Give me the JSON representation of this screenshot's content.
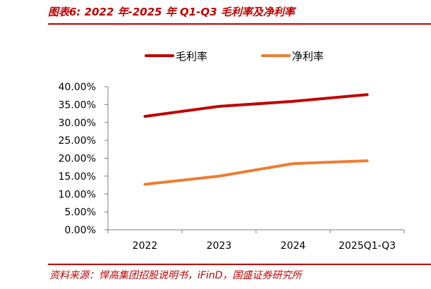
{
  "figure": {
    "title": "图表6:  2022 年-2025 年 Q1-Q3 毛利率及净利率",
    "source": "资料来源：悍高集团招股说明书，iFinD，国盛证券研究所"
  },
  "colors": {
    "gross": "#c00000",
    "net": "#ed7d31",
    "accent": "#c00000",
    "axis": "#7f7f7f"
  },
  "chart_data": {
    "type": "line",
    "title": "",
    "xlabel": "",
    "ylabel": "",
    "categories": [
      "2022",
      "2023",
      "2024",
      "2025Q1-Q3"
    ],
    "series": [
      {
        "name": "毛利率",
        "color": "#c00000",
        "values": [
          31.7,
          34.5,
          35.9,
          37.8
        ]
      },
      {
        "name": "净利率",
        "color": "#ed7d31",
        "values": [
          12.7,
          15.0,
          18.5,
          19.3
        ]
      }
    ],
    "ylim": [
      0,
      40
    ],
    "y_ticks": [
      "0.00%",
      "5.00%",
      "10.00%",
      "15.00%",
      "20.00%",
      "25.00%",
      "30.00%",
      "35.00%",
      "40.00%"
    ],
    "grid": false,
    "legend_position": "top"
  }
}
